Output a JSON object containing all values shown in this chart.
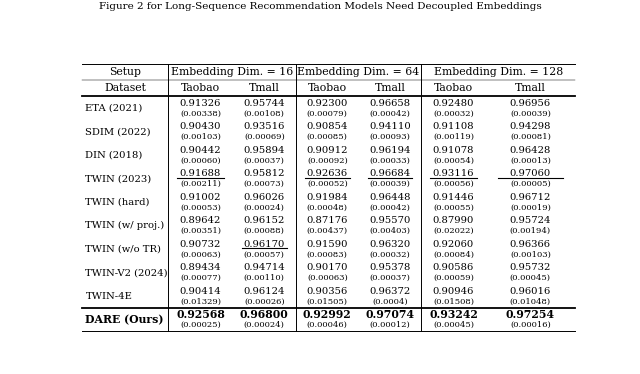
{
  "title": "Figure 2 for Long-Sequence Recommendation Models Need Decoupled Embeddings",
  "headers_row1_left": "Setup",
  "headers_row1_groups": [
    "Embedding Dim. = 16",
    "Embedding Dim. = 64",
    "Embedding Dim. = 128"
  ],
  "headers_row2": [
    "Dataset",
    "Taobao",
    "Tmall",
    "Taobao",
    "Tmall",
    "Taobao",
    "Tmall"
  ],
  "rows": [
    {
      "name": "ETA (2021)",
      "values": [
        "0.91326",
        "0.95744",
        "0.92300",
        "0.96658",
        "0.92480",
        "0.96956"
      ],
      "stds": [
        "(0.00338)",
        "(0.00108)",
        "(0.00079)",
        "(0.00042)",
        "(0.00032)",
        "(0.00039)"
      ],
      "underline": [
        false,
        false,
        false,
        false,
        false,
        false
      ],
      "bold": [
        false,
        false,
        false,
        false,
        false,
        false
      ],
      "dare": false
    },
    {
      "name": "SDIM (2022)",
      "values": [
        "0.90430",
        "0.93516",
        "0.90854",
        "0.94110",
        "0.91108",
        "0.94298"
      ],
      "stds": [
        "(0.00103)",
        "(0.00069)",
        "(0.00085)",
        "(0.00093)",
        "(0.00119)",
        "(0.00081)"
      ],
      "underline": [
        false,
        false,
        false,
        false,
        false,
        false
      ],
      "bold": [
        false,
        false,
        false,
        false,
        false,
        false
      ],
      "dare": false
    },
    {
      "name": "DIN (2018)",
      "values": [
        "0.90442",
        "0.95894",
        "0.90912",
        "0.96194",
        "0.91078",
        "0.96428"
      ],
      "stds": [
        "(0.00060)",
        "(0.00037)",
        "(0.00092)",
        "(0.00033)",
        "(0.00054)",
        "(0.00013)"
      ],
      "underline": [
        false,
        false,
        false,
        false,
        false,
        false
      ],
      "bold": [
        false,
        false,
        false,
        false,
        false,
        false
      ],
      "dare": false
    },
    {
      "name": "TWIN (2023)",
      "values": [
        "0.91688",
        "0.95812",
        "0.92636",
        "0.96684",
        "0.93116",
        "0.97060"
      ],
      "stds": [
        "(0.00211)",
        "(0.00073)",
        "(0.00052)",
        "(0.00039)",
        "(0.00056)",
        "(0.00005)"
      ],
      "underline": [
        true,
        false,
        true,
        true,
        true,
        true
      ],
      "bold": [
        false,
        false,
        false,
        false,
        false,
        false
      ],
      "dare": false
    },
    {
      "name": "TWIN (hard)",
      "values": [
        "0.91002",
        "0.96026",
        "0.91984",
        "0.96448",
        "0.91446",
        "0.96712"
      ],
      "stds": [
        "(0.00053)",
        "(0.00024)",
        "(0.00048)",
        "(0.00042)",
        "(0.00055)",
        "(0.00019)"
      ],
      "underline": [
        false,
        false,
        false,
        false,
        false,
        false
      ],
      "bold": [
        false,
        false,
        false,
        false,
        false,
        false
      ],
      "dare": false
    },
    {
      "name": "TWIN (w/ proj.)",
      "values": [
        "0.89642",
        "0.96152",
        "0.87176",
        "0.95570",
        "0.87990",
        "0.95724"
      ],
      "stds": [
        "(0.00351)",
        "(0.00088)",
        "(0.00437)",
        "(0.00403)",
        "(0.02022)",
        "(0.00194)"
      ],
      "underline": [
        false,
        false,
        false,
        false,
        false,
        false
      ],
      "bold": [
        false,
        false,
        false,
        false,
        false,
        false
      ],
      "dare": false
    },
    {
      "name": "TWIN (w/o TR)",
      "values": [
        "0.90732",
        "0.96170",
        "0.91590",
        "0.96320",
        "0.92060",
        "0.96366"
      ],
      "stds": [
        "(0.00063)",
        "(0.00057)",
        "(0.00083)",
        "(0.00032)",
        "(0.00084)",
        "(0.00103)"
      ],
      "underline": [
        false,
        true,
        false,
        false,
        false,
        false
      ],
      "bold": [
        false,
        false,
        false,
        false,
        false,
        false
      ],
      "dare": false
    },
    {
      "name": "TWIN-V2 (2024)",
      "values": [
        "0.89434",
        "0.94714",
        "0.90170",
        "0.95378",
        "0.90586",
        "0.95732"
      ],
      "stds": [
        "(0.00077)",
        "(0.00110)",
        "(0.00063)",
        "(0.00037)",
        "(0.00059)",
        "(0.00045)"
      ],
      "underline": [
        false,
        false,
        false,
        false,
        false,
        false
      ],
      "bold": [
        false,
        false,
        false,
        false,
        false,
        false
      ],
      "dare": false
    },
    {
      "name": "TWIN-4E",
      "values": [
        "0.90414",
        "0.96124",
        "0.90356",
        "0.96372",
        "0.90946",
        "0.96016"
      ],
      "stds": [
        "(0.01329)",
        "(0.00026)",
        "(0.01505)",
        "(0.0004)",
        "(0.01508)",
        "(0.01048)"
      ],
      "underline": [
        false,
        false,
        false,
        false,
        false,
        false
      ],
      "bold": [
        false,
        false,
        false,
        false,
        false,
        false
      ],
      "dare": false
    },
    {
      "name": "DARE (Ours)",
      "values": [
        "0.92568",
        "0.96800",
        "0.92992",
        "0.97074",
        "0.93242",
        "0.97254"
      ],
      "stds": [
        "(0.00025)",
        "(0.00024)",
        "(0.00046)",
        "(0.00012)",
        "(0.00045)",
        "(0.00016)"
      ],
      "underline": [
        false,
        false,
        false,
        false,
        false,
        false
      ],
      "bold": [
        true,
        true,
        true,
        true,
        true,
        true
      ],
      "dare": true
    }
  ],
  "bg_color": "#ffffff",
  "text_color": "#000000",
  "col_bounds": [
    0.005,
    0.178,
    0.308,
    0.435,
    0.562,
    0.688,
    0.818,
    0.998
  ],
  "fs_header": 7.8,
  "fs_data": 7.2,
  "fs_std": 6.0,
  "fs_name": 7.2,
  "fs_dare_name": 7.8,
  "fs_dare_val": 7.8
}
